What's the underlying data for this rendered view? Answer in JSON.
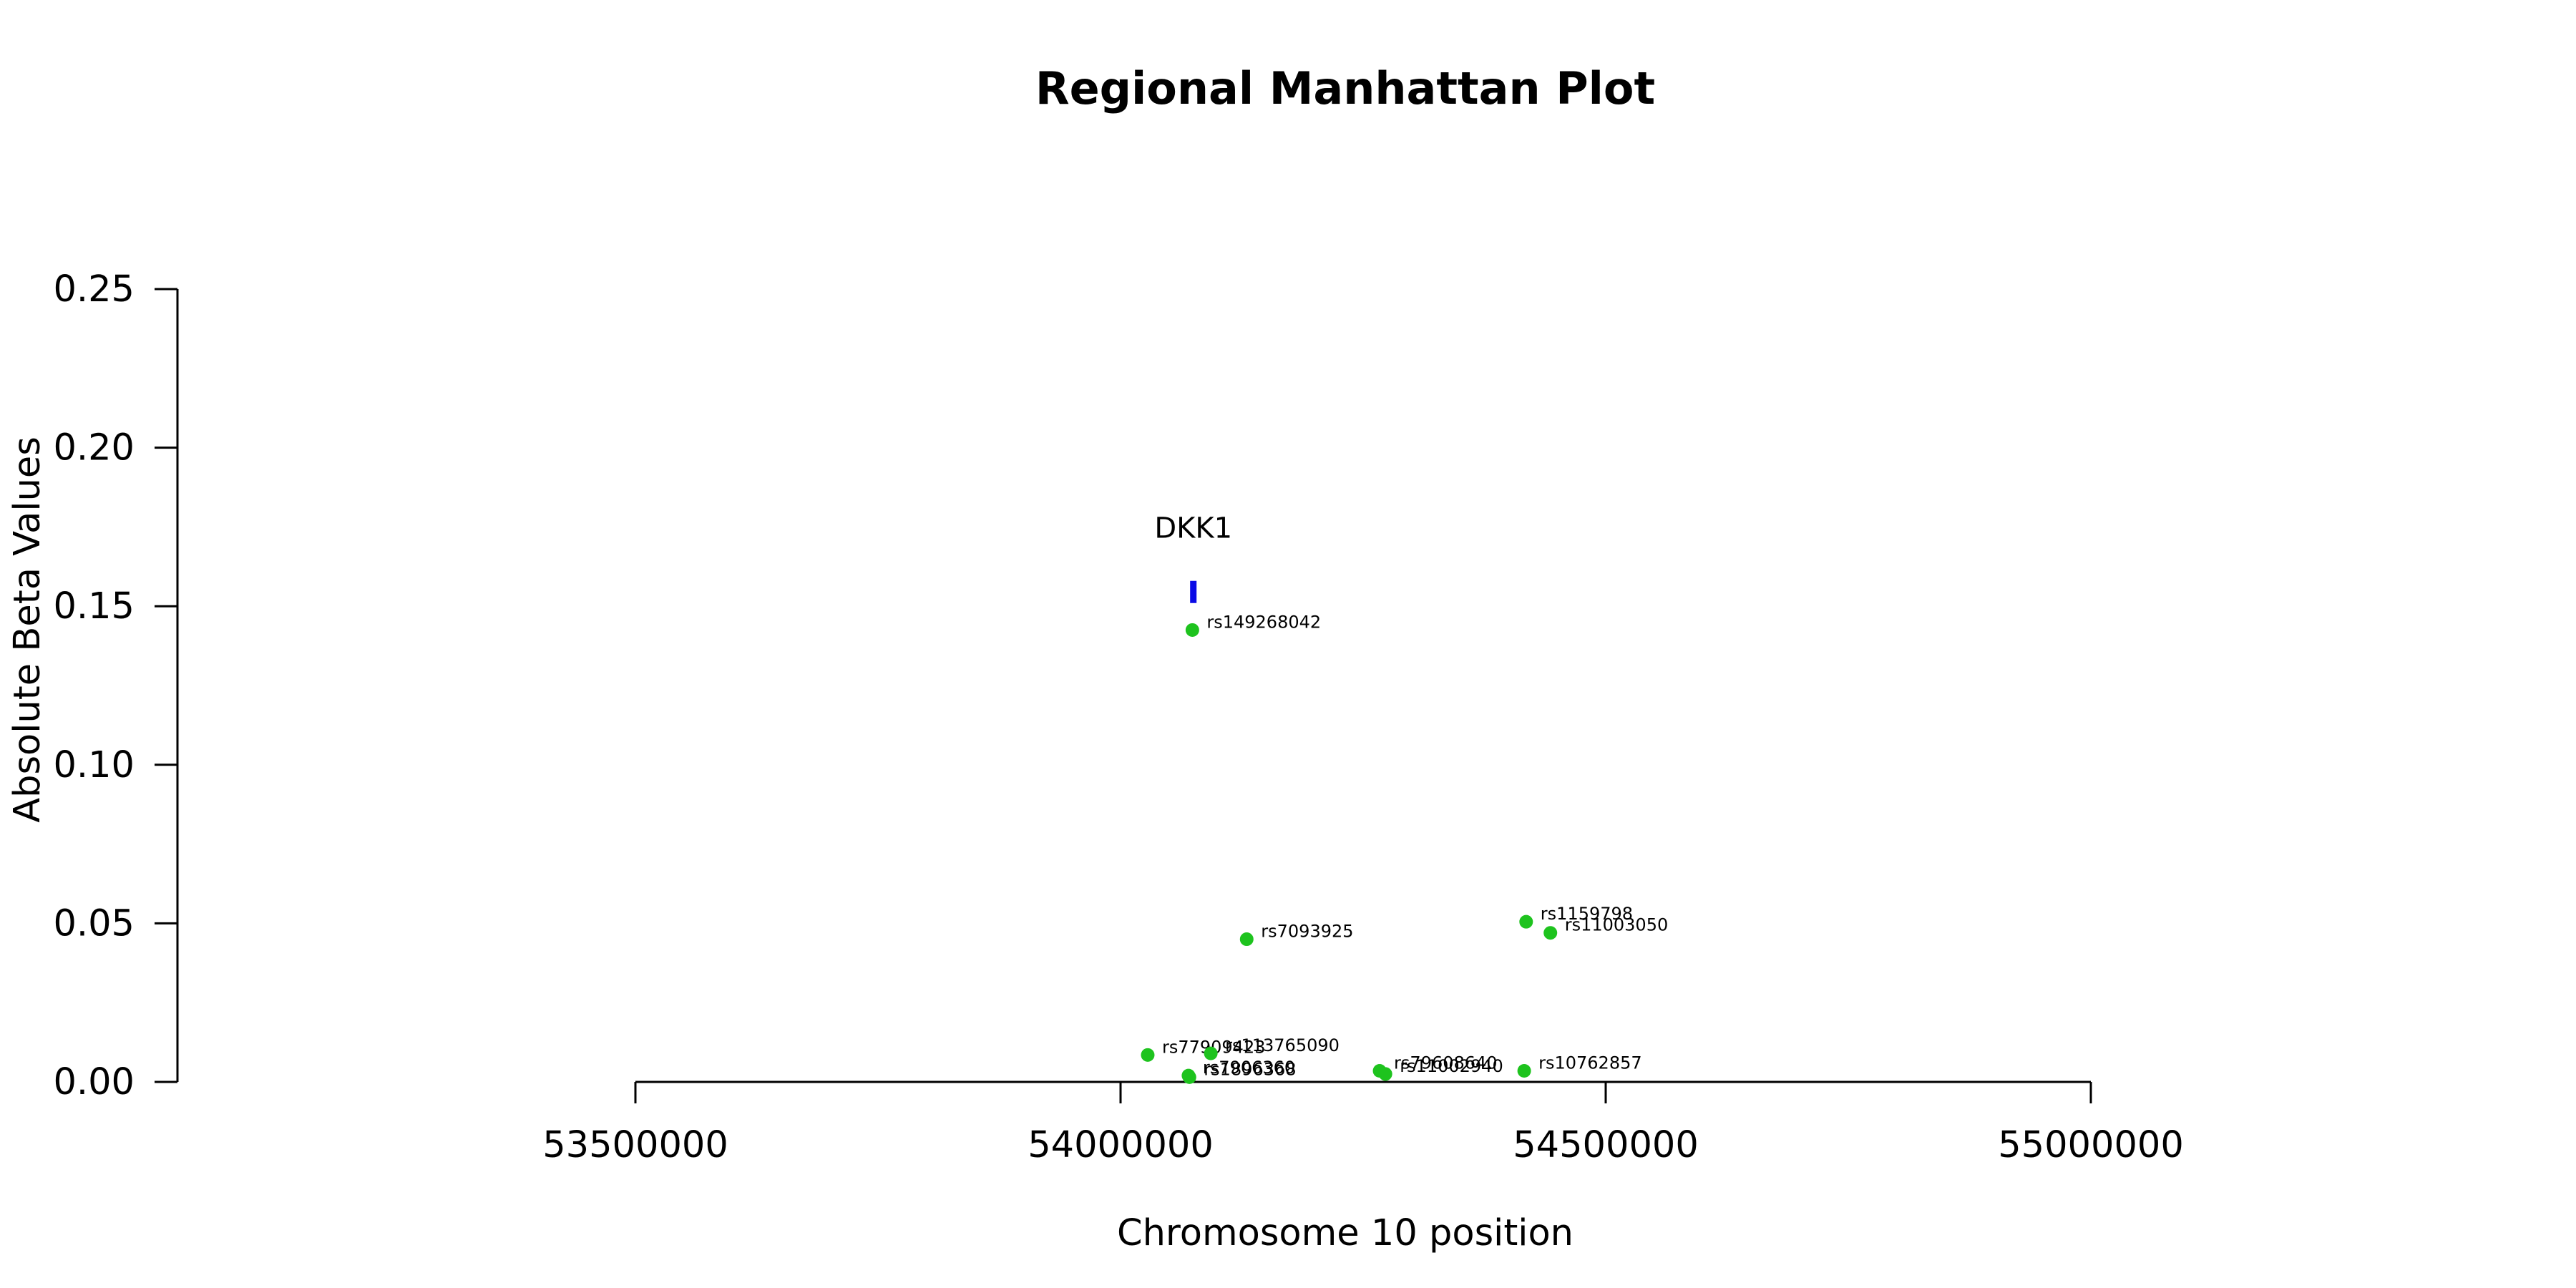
{
  "chart_data": {
    "type": "scatter",
    "title": "Regional Manhattan Plot",
    "xlabel": "Chromosome 10 position",
    "ylabel": "Absolute Beta Values",
    "xlim": [
      53500000,
      55000000
    ],
    "ylim": [
      0,
      0.25
    ],
    "x_ticks": [
      53500000,
      54000000,
      54500000,
      55000000
    ],
    "x_tick_labels": [
      "53500000",
      "54000000",
      "54500000",
      "55000000"
    ],
    "y_ticks": [
      0,
      0.05,
      0.1,
      0.15,
      0.2,
      0.25
    ],
    "y_tick_labels": [
      "0.00",
      "0.05",
      "0.10",
      "0.15",
      "0.20",
      "0.25"
    ],
    "grid": false,
    "point_color": "#1ec31e",
    "gene_color": "#0a0ae6",
    "genes": [
      {
        "name": "DKK1",
        "position": 54075000,
        "y_bottom": 0.151,
        "y_top": 0.158
      }
    ],
    "series": [
      {
        "points": [
          {
            "label": "rs149268042",
            "x": 54074000,
            "y": 0.1425
          },
          {
            "label": "rs7093925",
            "x": 54130000,
            "y": 0.045
          },
          {
            "label": "rs1159798",
            "x": 54418000,
            "y": 0.0505
          },
          {
            "label": "rs11003050",
            "x": 54443000,
            "y": 0.047
          },
          {
            "label": "rs77909423",
            "x": 54028000,
            "y": 0.0085
          },
          {
            "label": "rs113765090",
            "x": 54093000,
            "y": 0.009
          },
          {
            "label": "rs7906360",
            "x": 54070000,
            "y": 0.002
          },
          {
            "label": "rs1896368",
            "x": 54071000,
            "y": 0.0015
          },
          {
            "label": "rs79608640",
            "x": 54267000,
            "y": 0.0035
          },
          {
            "label": "rs11002940",
            "x": 54273000,
            "y": 0.0025
          },
          {
            "label": "rs10762857",
            "x": 54416000,
            "y": 0.0035
          }
        ]
      }
    ]
  }
}
